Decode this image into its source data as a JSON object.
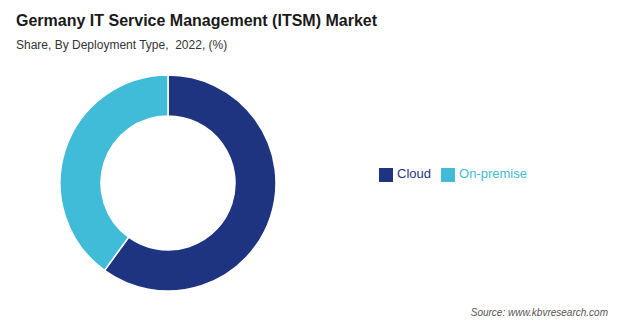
{
  "chart_data": {
    "type": "donut",
    "title": "Germany IT Service Management (ITSM) Market",
    "subtitle": "Share, By Deployment Type,  2022, (%)",
    "categories": [
      "Cloud",
      "On-premise"
    ],
    "values": [
      60,
      40
    ],
    "colors": [
      "#1f3480",
      "#40bcd8"
    ],
    "source": "Source: www.kbvresearch.com",
    "legend": "right"
  }
}
